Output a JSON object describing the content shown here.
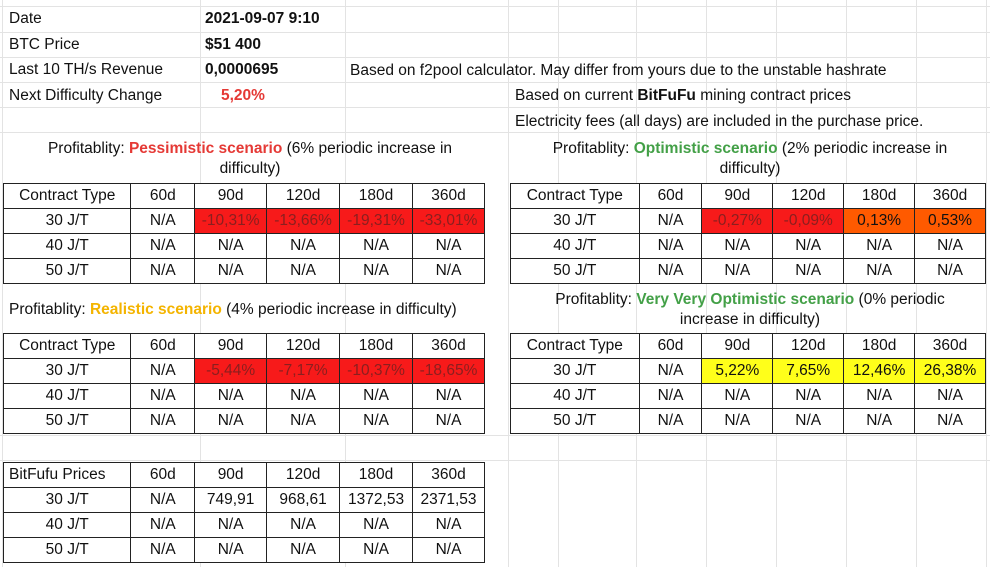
{
  "info": {
    "date_label": "Date",
    "date_value": "2021-09-07 9:10",
    "btc_label": "BTC Price",
    "btc_value": "$51 400",
    "revenue_label": "Last 10 TH/s Revenue",
    "revenue_value": "0,0000695",
    "difficulty_label": "Next Difficulty Change",
    "difficulty_value": "5,20%",
    "note_f2pool": "Based on f2pool calculator. May differ from yours due to the unstable hashrate",
    "note_contract_prefix": "Based on current ",
    "note_contract_brand": "BitFuFu",
    "note_contract_suffix": " mining contract prices",
    "note_fees": "Electricity fees (all days) are included in the purchase price."
  },
  "columns": [
    "60d",
    "90d",
    "120d",
    "180d",
    "360d"
  ],
  "pessimistic": {
    "prefix": "Profitablity: ",
    "name": "Pessimistic scenario",
    "suffix_line1": " (6% periodic increase in",
    "suffix_line2": "difficulty)",
    "header": "Contract Type",
    "rows": [
      {
        "type": "30 J/T",
        "cells": [
          "N/A",
          "-10,31%",
          "-13,66%",
          "-19,31%",
          "-33,01%"
        ]
      },
      {
        "type": "40 J/T",
        "cells": [
          "N/A",
          "N/A",
          "N/A",
          "N/A",
          "N/A"
        ]
      },
      {
        "type": "50 J/T",
        "cells": [
          "N/A",
          "N/A",
          "N/A",
          "N/A",
          "N/A"
        ]
      }
    ]
  },
  "optimistic": {
    "prefix": "Profitablity: ",
    "name": "Optimistic scenario",
    "suffix_line1": " (2% periodic increase in",
    "suffix_line2": "difficulty)",
    "header": "Contract Type",
    "rows": [
      {
        "type": "30 J/T",
        "cells": [
          "N/A",
          "-0,27%",
          "-0,09%",
          "0,13%",
          "0,53%"
        ]
      },
      {
        "type": "40 J/T",
        "cells": [
          "N/A",
          "N/A",
          "N/A",
          "N/A",
          "N/A"
        ]
      },
      {
        "type": "50 J/T",
        "cells": [
          "N/A",
          "N/A",
          "N/A",
          "N/A",
          "N/A"
        ]
      }
    ]
  },
  "realistic": {
    "prefix": "Profitablity: ",
    "name": "Realistic scenario",
    "suffix": " (4% periodic increase in difficulty)",
    "header": "Contract Type",
    "rows": [
      {
        "type": "30 J/T",
        "cells": [
          "N/A",
          "-5,44%",
          "-7,17%",
          "-10,37%",
          "-18,65%"
        ]
      },
      {
        "type": "40 J/T",
        "cells": [
          "N/A",
          "N/A",
          "N/A",
          "N/A",
          "N/A"
        ]
      },
      {
        "type": "50 J/T",
        "cells": [
          "N/A",
          "N/A",
          "N/A",
          "N/A",
          "N/A"
        ]
      }
    ]
  },
  "very_optimistic": {
    "prefix": "Profitablity: ",
    "name": "Very Very Optimistic scenario",
    "suffix_line1": " (0% periodic",
    "suffix_line2": "increase in difficulty)",
    "header": "Contract Type",
    "rows": [
      {
        "type": "30 J/T",
        "cells": [
          "N/A",
          "5,22%",
          "7,65%",
          "12,46%",
          "26,38%"
        ]
      },
      {
        "type": "40 J/T",
        "cells": [
          "N/A",
          "N/A",
          "N/A",
          "N/A",
          "N/A"
        ]
      },
      {
        "type": "50 J/T",
        "cells": [
          "N/A",
          "N/A",
          "N/A",
          "N/A",
          "N/A"
        ]
      }
    ]
  },
  "prices": {
    "header": "BitFufu Prices",
    "rows": [
      {
        "type": "30 J/T",
        "cells": [
          "N/A",
          "749,91",
          "968,61",
          "1372,53",
          "2371,53"
        ]
      },
      {
        "type": "40 J/T",
        "cells": [
          "N/A",
          "N/A",
          "N/A",
          "N/A",
          "N/A"
        ]
      },
      {
        "type": "50 J/T",
        "cells": [
          "N/A",
          "N/A",
          "N/A",
          "N/A",
          "N/A"
        ]
      }
    ]
  },
  "colors": {
    "negative": "#f71a1a",
    "orange": "#ff5a00",
    "positive": "#ffff1a",
    "pessimistic_label": "#e53935",
    "optimistic_label": "#43a047",
    "realistic_label": "#f4b400"
  }
}
